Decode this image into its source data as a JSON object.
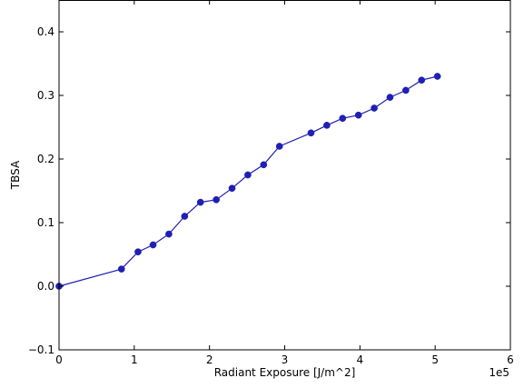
{
  "chart_data": {
    "type": "line",
    "title": "",
    "xlabel": "Radiant Exposure [J/m^2]",
    "ylabel": "TBSA",
    "x_scale_label": "1e5",
    "xlim": [
      0,
      6
    ],
    "ylim": [
      -0.1,
      0.45
    ],
    "xticks": [
      "0",
      "1",
      "2",
      "3",
      "4",
      "5",
      "6"
    ],
    "yticks": [
      "−0.1",
      "0.0",
      "0.1",
      "0.2",
      "0.3",
      "0.4"
    ],
    "grid": false,
    "legend": "none",
    "series": [
      {
        "color": "#1f1fb4",
        "marker": "circle",
        "x": [
          0.0,
          0.83,
          1.05,
          1.25,
          1.46,
          1.67,
          1.88,
          2.09,
          2.3,
          2.51,
          2.72,
          2.93,
          3.35,
          3.56,
          3.77,
          3.98,
          4.19,
          4.4,
          4.61,
          4.82,
          5.03
        ],
        "y": [
          0.0,
          0.027,
          0.054,
          0.065,
          0.082,
          0.11,
          0.132,
          0.136,
          0.154,
          0.175,
          0.191,
          0.22,
          0.241,
          0.253,
          0.264,
          0.269,
          0.28,
          0.297,
          0.308,
          0.324,
          0.33
        ]
      }
    ]
  }
}
